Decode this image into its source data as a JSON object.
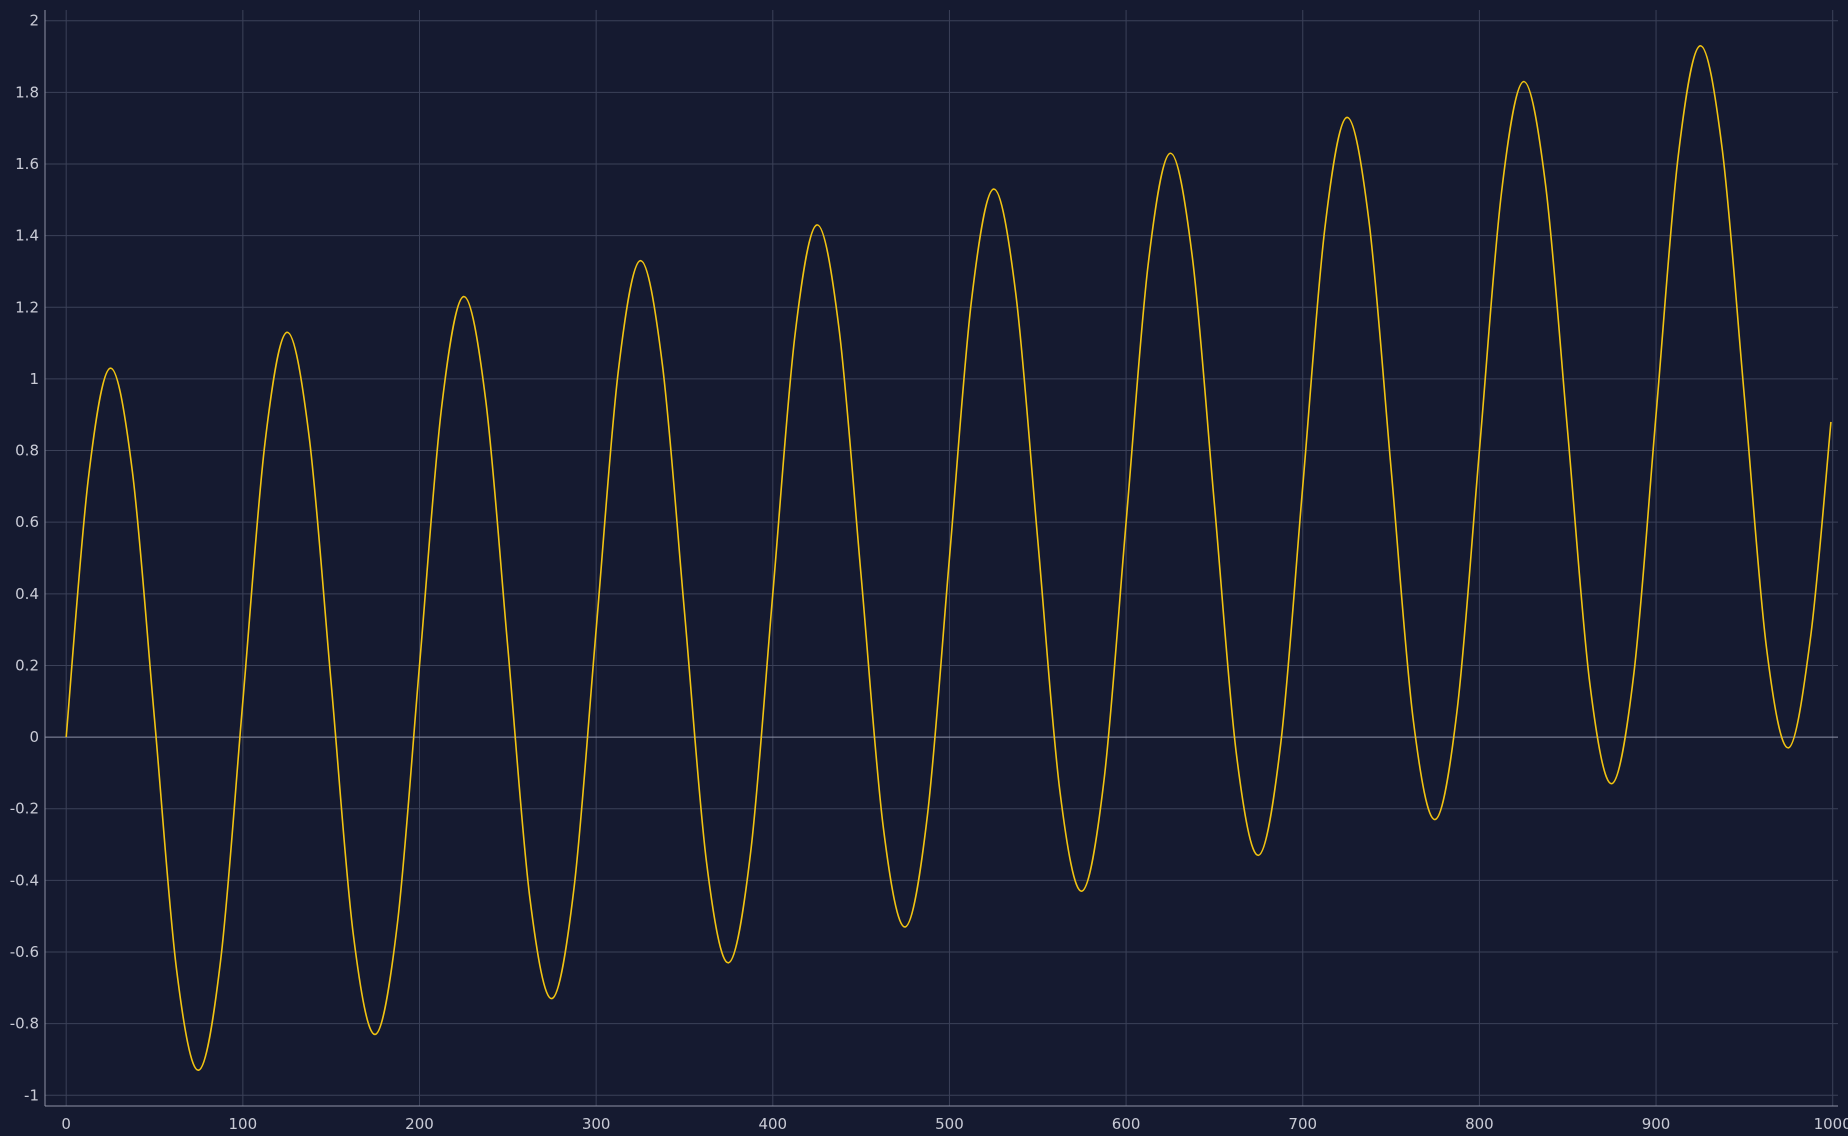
{
  "chart_data": {
    "type": "line",
    "title": "",
    "xlabel": "",
    "ylabel": "",
    "xlim": [
      -12,
      1003
    ],
    "ylim": [
      -1.03,
      2.03
    ],
    "grid": true,
    "x_ticks": [
      0,
      100,
      200,
      300,
      400,
      500,
      600,
      700,
      800,
      900,
      1000
    ],
    "x_tick_labels": [
      "0",
      "100",
      "200",
      "300",
      "400",
      "500",
      "600",
      "700",
      "800",
      "900",
      "1000"
    ],
    "y_ticks": [
      -1,
      -0.8,
      -0.6,
      -0.4,
      -0.2,
      0,
      0.2,
      0.4,
      0.6,
      0.8,
      1,
      1.2,
      1.4,
      1.6,
      1.8,
      2
    ],
    "y_tick_labels": [
      "-1",
      "-0.8",
      "-0.6",
      "-0.4",
      "-0.2",
      "0",
      "0.2",
      "0.4",
      "0.6",
      "0.8",
      "1",
      "1.2",
      "1.4",
      "1.6",
      "1.8",
      "2"
    ],
    "series": [
      {
        "color": "#f2c412",
        "x": [
          0,
          12.5,
          25,
          37.5,
          50,
          62.5,
          75,
          87.5,
          100,
          112.5,
          125,
          137.5,
          150,
          162.5,
          175,
          187.5,
          200,
          212.5,
          225,
          237.5,
          250,
          262.5,
          275,
          287.5,
          300,
          312.5,
          325,
          337.5,
          350,
          362.5,
          375,
          387.5,
          400,
          412.5,
          425,
          437.5,
          450,
          462.5,
          475,
          487.5,
          500,
          512.5,
          525,
          537.5,
          550,
          562.5,
          575,
          587.5,
          600,
          612.5,
          625,
          637.5,
          650,
          662.5,
          675,
          687.5,
          700,
          712.5,
          725,
          737.5,
          750,
          762.5,
          775,
          787.5,
          800,
          812.5,
          825,
          837.5,
          850,
          862.5,
          875,
          887.5,
          900,
          912.5,
          925,
          937.5,
          950,
          962.5,
          975,
          987.5,
          999
        ],
        "y": [
          0,
          0.72,
          1.03,
          0.74,
          0.05,
          -0.65,
          -0.93,
          -0.62,
          0.1,
          0.82,
          1.13,
          0.84,
          0.15,
          -0.55,
          -0.83,
          -0.52,
          0.2,
          0.92,
          1.23,
          0.94,
          0.25,
          -0.45,
          -0.73,
          -0.42,
          0.3,
          1.02,
          1.33,
          1.04,
          0.35,
          -0.35,
          -0.63,
          -0.32,
          0.4,
          1.12,
          1.43,
          1.14,
          0.45,
          -0.25,
          -0.53,
          -0.22,
          0.5,
          1.22,
          1.53,
          1.24,
          0.55,
          -0.15,
          -0.43,
          -0.12,
          0.6,
          1.32,
          1.63,
          1.34,
          0.65,
          -0.05,
          -0.33,
          -0.02,
          0.7,
          1.42,
          1.73,
          1.44,
          0.75,
          0.05,
          -0.23,
          0.08,
          0.8,
          1.52,
          1.83,
          1.54,
          0.85,
          0.15,
          -0.13,
          0.18,
          0.9,
          1.62,
          1.93,
          1.64,
          0.95,
          0.25,
          -0.03,
          0.28,
          0.88
        ]
      }
    ]
  }
}
